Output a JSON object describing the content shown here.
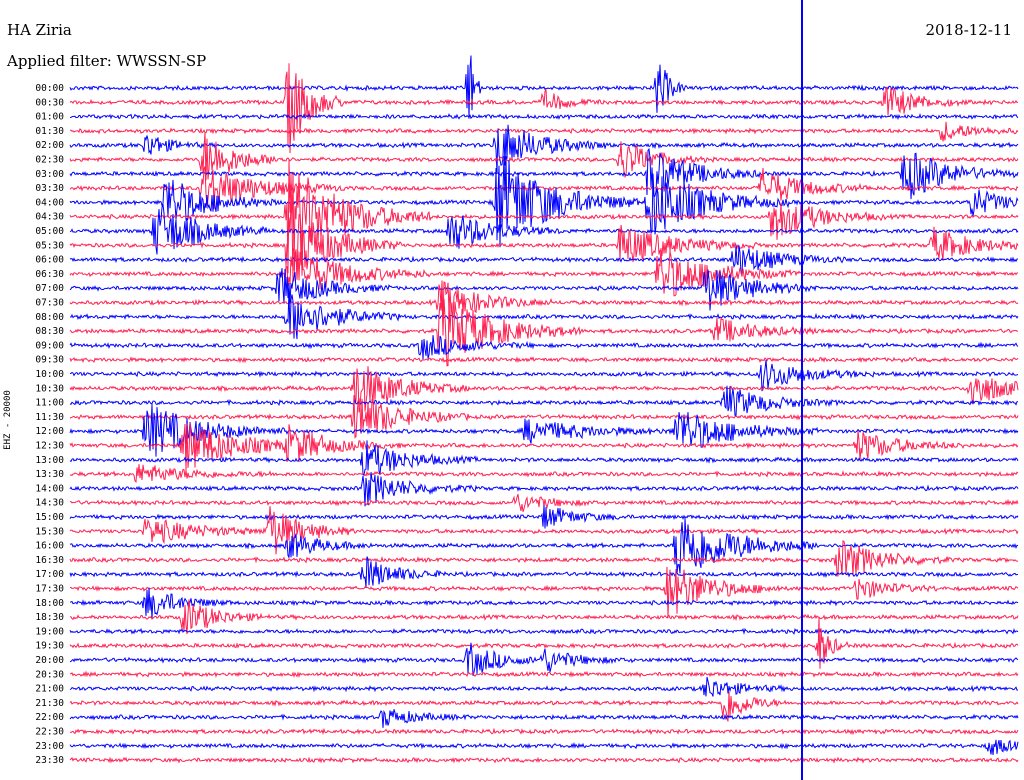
{
  "header": {
    "station": "HA Ziria",
    "date": "2018-12-11",
    "filter": "Applied filter: WWSSN-SP"
  },
  "colors": {
    "even": "#0000ff",
    "odd": "#ff2052"
  },
  "chart_data": {
    "type": "line",
    "title": "",
    "ylabel": "EHZ - 20000",
    "xlabel": "",
    "grid": false,
    "traces": [
      "00:00",
      "00:30",
      "01:00",
      "01:30",
      "02:00",
      "02:30",
      "03:00",
      "03:30",
      "04:00",
      "04:30",
      "05:00",
      "05:30",
      "06:00",
      "06:30",
      "07:00",
      "07:30",
      "08:00",
      "08:30",
      "09:00",
      "09:30",
      "10:00",
      "10:30",
      "11:00",
      "11:30",
      "12:00",
      "12:30",
      "13:00",
      "13:30",
      "14:00",
      "14:30",
      "15:00",
      "15:30",
      "16:00",
      "16:30",
      "17:00",
      "17:30",
      "18:00",
      "18:30",
      "19:00",
      "19:30",
      "20:00",
      "20:30",
      "21:00",
      "21:30",
      "22:00",
      "22:30",
      "23:00",
      "23:30"
    ],
    "events": [
      [
        0,
        0.42,
        60,
        0.005
      ],
      [
        0,
        0.62,
        35,
        0.01
      ],
      [
        1,
        0.23,
        55,
        0.02
      ],
      [
        1,
        0.5,
        12,
        0.02
      ],
      [
        1,
        0.86,
        18,
        0.03
      ],
      [
        3,
        0.92,
        10,
        0.03
      ],
      [
        4,
        0.08,
        14,
        0.02
      ],
      [
        4,
        0.45,
        28,
        0.04
      ],
      [
        5,
        0.14,
        30,
        0.03
      ],
      [
        5,
        0.58,
        22,
        0.03
      ],
      [
        6,
        0.61,
        30,
        0.04
      ],
      [
        6,
        0.88,
        28,
        0.04
      ],
      [
        7,
        0.14,
        25,
        0.05
      ],
      [
        7,
        0.73,
        20,
        0.04
      ],
      [
        8,
        0.1,
        30,
        0.04
      ],
      [
        8,
        0.45,
        55,
        0.05
      ],
      [
        8,
        0.61,
        40,
        0.05
      ],
      [
        8,
        0.95,
        16,
        0.03
      ],
      [
        9,
        0.23,
        60,
        0.05
      ],
      [
        9,
        0.74,
        26,
        0.04
      ],
      [
        10,
        0.09,
        32,
        0.04
      ],
      [
        10,
        0.4,
        22,
        0.04
      ],
      [
        11,
        0.23,
        45,
        0.04
      ],
      [
        11,
        0.58,
        22,
        0.05
      ],
      [
        11,
        0.91,
        18,
        0.04
      ],
      [
        12,
        0.7,
        18,
        0.04
      ],
      [
        13,
        0.23,
        30,
        0.05
      ],
      [
        13,
        0.62,
        30,
        0.05
      ],
      [
        14,
        0.22,
        22,
        0.04
      ],
      [
        14,
        0.67,
        25,
        0.04
      ],
      [
        15,
        0.39,
        22,
        0.04
      ],
      [
        16,
        0.23,
        28,
        0.04
      ],
      [
        17,
        0.39,
        40,
        0.05
      ],
      [
        17,
        0.68,
        14,
        0.04
      ],
      [
        18,
        0.37,
        14,
        0.04
      ],
      [
        20,
        0.73,
        16,
        0.04
      ],
      [
        21,
        0.3,
        30,
        0.04
      ],
      [
        21,
        0.95,
        22,
        0.03
      ],
      [
        22,
        0.69,
        18,
        0.04
      ],
      [
        23,
        0.3,
        28,
        0.04
      ],
      [
        24,
        0.08,
        30,
        0.05
      ],
      [
        24,
        0.64,
        25,
        0.05
      ],
      [
        24,
        0.48,
        12,
        0.06
      ],
      [
        25,
        0.12,
        28,
        0.05
      ],
      [
        25,
        0.23,
        18,
        0.04
      ],
      [
        25,
        0.83,
        16,
        0.04
      ],
      [
        26,
        0.31,
        20,
        0.04
      ],
      [
        27,
        0.07,
        10,
        0.05
      ],
      [
        28,
        0.31,
        18,
        0.04
      ],
      [
        29,
        0.47,
        10,
        0.03
      ],
      [
        30,
        0.5,
        12,
        0.03
      ],
      [
        31,
        0.08,
        14,
        0.05
      ],
      [
        31,
        0.21,
        28,
        0.03
      ],
      [
        32,
        0.23,
        14,
        0.03
      ],
      [
        32,
        0.64,
        40,
        0.05
      ],
      [
        33,
        0.81,
        22,
        0.04
      ],
      [
        34,
        0.31,
        18,
        0.03
      ],
      [
        35,
        0.63,
        30,
        0.04
      ],
      [
        35,
        0.83,
        12,
        0.03
      ],
      [
        36,
        0.08,
        18,
        0.03
      ],
      [
        37,
        0.12,
        20,
        0.03
      ],
      [
        39,
        0.79,
        30,
        0.01
      ],
      [
        40,
        0.42,
        18,
        0.03
      ],
      [
        40,
        0.5,
        12,
        0.03
      ],
      [
        42,
        0.67,
        12,
        0.03
      ],
      [
        43,
        0.69,
        24,
        0.02
      ],
      [
        44,
        0.33,
        10,
        0.03
      ],
      [
        46,
        0.97,
        10,
        0.02
      ]
    ]
  }
}
